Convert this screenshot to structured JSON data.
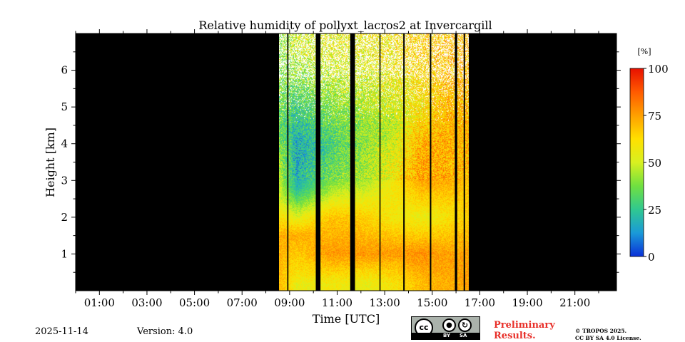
{
  "chart_data": {
    "type": "heatmap",
    "title": "Relative humidity of pollyxt_lacros2 at Invercargill",
    "xlabel": "Time [UTC]",
    "ylabel": "Height [km]",
    "xlim_hours": [
      0,
      22.75
    ],
    "ylim_km": [
      0,
      7
    ],
    "x_ticks": [
      {
        "hour": 1,
        "label": "01:00"
      },
      {
        "hour": 3,
        "label": "03:00"
      },
      {
        "hour": 5,
        "label": "05:00"
      },
      {
        "hour": 7,
        "label": "07:00"
      },
      {
        "hour": 9,
        "label": "09:00"
      },
      {
        "hour": 11,
        "label": "11:00"
      },
      {
        "hour": 13,
        "label": "13:00"
      },
      {
        "hour": 15,
        "label": "15:00"
      },
      {
        "hour": 17,
        "label": "17:00"
      },
      {
        "hour": 19,
        "label": "19:00"
      },
      {
        "hour": 21,
        "label": "21:00"
      }
    ],
    "y_ticks": [
      {
        "km": 1,
        "label": "1"
      },
      {
        "km": 2,
        "label": "2"
      },
      {
        "km": 3,
        "label": "3"
      },
      {
        "km": 4,
        "label": "4"
      },
      {
        "km": 5,
        "label": "5"
      },
      {
        "km": 6,
        "label": "6"
      }
    ],
    "colorbar": {
      "unit": "[%]",
      "range": [
        0,
        100
      ],
      "ticks": [
        {
          "value": 0,
          "label": "0"
        },
        {
          "value": 25,
          "label": "25"
        },
        {
          "value": 50,
          "label": "50"
        },
        {
          "value": 75,
          "label": "75"
        },
        {
          "value": 100,
          "label": "100"
        }
      ],
      "colormap": [
        "#0a30d8",
        "#1a9ad8",
        "#30c890",
        "#70e040",
        "#d8f020",
        "#ffe000",
        "#ffa000",
        "#ff5a00",
        "#e81000"
      ]
    },
    "data_window_hours": [
      8.55,
      16.55
    ],
    "no_data_color": "#000000",
    "gaps_hours": [
      [
        8.9,
        8.95
      ],
      [
        10.1,
        10.3
      ],
      [
        11.55,
        11.75
      ],
      [
        12.78,
        12.82
      ],
      [
        13.78,
        13.84
      ],
      [
        14.9,
        14.96
      ],
      [
        15.95,
        16.05
      ],
      [
        16.32,
        16.38
      ]
    ],
    "rh_profile_by_time": [
      {
        "hour": 8.6,
        "rh": [
          {
            "km": 0.2,
            "v": 70
          },
          {
            "km": 1.5,
            "v": 72
          },
          {
            "km": 2.5,
            "v": 50
          },
          {
            "km": 4.5,
            "v": 35
          },
          {
            "km": 6.5,
            "v": 40
          }
        ]
      },
      {
        "hour": 9.3,
        "rh": [
          {
            "km": 0.2,
            "v": 55
          },
          {
            "km": 0.6,
            "v": 62
          },
          {
            "km": 1.5,
            "v": 72
          },
          {
            "km": 2.2,
            "v": 45
          },
          {
            "km": 2.8,
            "v": 20
          },
          {
            "km": 4.0,
            "v": 18
          },
          {
            "km": 5.0,
            "v": 28
          },
          {
            "km": 6.5,
            "v": 50
          }
        ]
      },
      {
        "hour": 10.8,
        "rh": [
          {
            "km": 0.2,
            "v": 58
          },
          {
            "km": 1.0,
            "v": 76
          },
          {
            "km": 2.0,
            "v": 68
          },
          {
            "km": 3.0,
            "v": 38
          },
          {
            "km": 4.0,
            "v": 30
          },
          {
            "km": 5.0,
            "v": 40
          },
          {
            "km": 6.5,
            "v": 55
          }
        ]
      },
      {
        "hour": 12.2,
        "rh": [
          {
            "km": 0.2,
            "v": 55
          },
          {
            "km": 1.0,
            "v": 76
          },
          {
            "km": 2.0,
            "v": 65
          },
          {
            "km": 3.0,
            "v": 45
          },
          {
            "km": 4.5,
            "v": 42
          },
          {
            "km": 6.5,
            "v": 55
          }
        ]
      },
      {
        "hour": 13.5,
        "rh": [
          {
            "km": 0.2,
            "v": 60
          },
          {
            "km": 1.0,
            "v": 76
          },
          {
            "km": 2.0,
            "v": 58
          },
          {
            "km": 3.0,
            "v": 60
          },
          {
            "km": 4.5,
            "v": 50
          },
          {
            "km": 6.5,
            "v": 60
          }
        ]
      },
      {
        "hour": 14.6,
        "rh": [
          {
            "km": 0.2,
            "v": 70
          },
          {
            "km": 1.0,
            "v": 78
          },
          {
            "km": 2.0,
            "v": 55
          },
          {
            "km": 3.0,
            "v": 75
          },
          {
            "km": 4.0,
            "v": 72
          },
          {
            "km": 5.0,
            "v": 60
          },
          {
            "km": 6.5,
            "v": 65
          }
        ]
      },
      {
        "hour": 15.7,
        "rh": [
          {
            "km": 0.2,
            "v": 72
          },
          {
            "km": 1.0,
            "v": 75
          },
          {
            "km": 2.0,
            "v": 60
          },
          {
            "km": 3.0,
            "v": 72
          },
          {
            "km": 5.0,
            "v": 70
          },
          {
            "km": 6.5,
            "v": 68
          }
        ]
      },
      {
        "hour": 16.5,
        "rh": [
          {
            "km": 0.2,
            "v": 75
          },
          {
            "km": 1.0,
            "v": 75
          },
          {
            "km": 2.0,
            "v": 65
          },
          {
            "km": 3.5,
            "v": 70
          },
          {
            "km": 6.5,
            "v": 70
          }
        ]
      }
    ]
  },
  "footer": {
    "date": "2025-11-14",
    "version": "Version: 4.0",
    "preliminary_line1": "Preliminary",
    "preliminary_line2": "Results.",
    "copyright_line1": "© TROPOS 2025.",
    "copyright_line2": "CC BY SA 4.0 License.",
    "license_badge": {
      "cc": "cc",
      "by": "BY",
      "sa": "SA"
    },
    "accent_color": "#e8302a"
  }
}
